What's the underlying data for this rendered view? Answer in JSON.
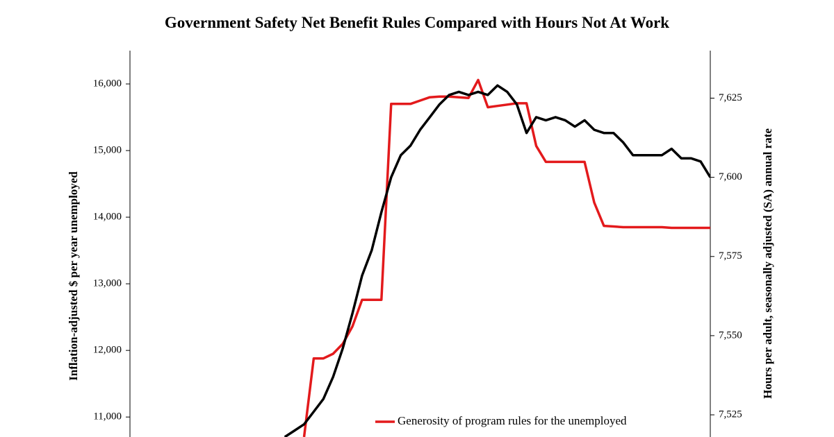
{
  "chart_data": {
    "type": "line",
    "title": "Government Safety Net Benefit Rules Compared with Hours Not At Work",
    "y_label": "Inflation-adjusted $ per year unemployed",
    "y2_label": "Hours per adult, seasonally adjusted (SA) annual rate",
    "categories": [
      null,
      null,
      null,
      null,
      null,
      null,
      null,
      null,
      null,
      null,
      null,
      null,
      null,
      null,
      null,
      null,
      null,
      null,
      null,
      null,
      null,
      null,
      null,
      null,
      null,
      null,
      null,
      null,
      null,
      null,
      null,
      null,
      null,
      null,
      null,
      null,
      null,
      null,
      null,
      null,
      null,
      null,
      null,
      null,
      null,
      null,
      null,
      null,
      null,
      null,
      null,
      null,
      null,
      null,
      null,
      null,
      null,
      null,
      null,
      null,
      null
    ],
    "ylim": [
      10700,
      16500
    ],
    "yticks": [
      {
        "value": 11000,
        "label": "11,000"
      },
      {
        "value": 12000,
        "label": "12,000"
      },
      {
        "value": 13000,
        "label": "13,000"
      },
      {
        "value": 14000,
        "label": "14,000"
      },
      {
        "value": 15000,
        "label": "15,000"
      },
      {
        "value": 16000,
        "label": "16,000"
      }
    ],
    "y2lim": [
      7518,
      7640
    ],
    "y2ticks": [
      {
        "value": 7525,
        "label": "7,525"
      },
      {
        "value": 7550,
        "label": "7,550"
      },
      {
        "value": 7575,
        "label": "7,575"
      },
      {
        "value": 7600,
        "label": "7,600"
      },
      {
        "value": 7625,
        "label": "7,625"
      }
    ],
    "series": [
      {
        "name": "Generosity of program rules for the unemployed",
        "color": "#e31a1c",
        "axis": "y",
        "values": [
          null,
          null,
          null,
          null,
          null,
          null,
          null,
          null,
          null,
          null,
          null,
          null,
          null,
          null,
          null,
          null,
          null,
          null,
          10700,
          11880,
          11880,
          11950,
          12100,
          12360,
          12760,
          12760,
          12760,
          15700,
          15700,
          15700,
          15750,
          15800,
          15810,
          15810,
          15800,
          15790,
          16060,
          15650,
          15670,
          15690,
          15710,
          15710,
          15070,
          14830,
          14830,
          14830,
          14830,
          14830,
          14220,
          13870,
          13860,
          13850,
          13850,
          13850,
          13850,
          13850,
          13840,
          13840,
          13840,
          13840,
          13840
        ]
      },
      {
        "color": "#000000",
        "axis": "y2",
        "values": [
          null,
          null,
          null,
          null,
          null,
          null,
          null,
          null,
          null,
          null,
          null,
          null,
          null,
          null,
          null,
          null,
          7518,
          7520,
          7522,
          7526,
          7530,
          7537,
          7546,
          7557,
          7569,
          7577,
          7589,
          7600,
          7607,
          7610,
          7615,
          7619,
          7623,
          7626,
          7627,
          7626,
          7627,
          7626,
          7629,
          7627,
          7623,
          7614,
          7619,
          7618,
          7619,
          7618,
          7616,
          7618,
          7615,
          7614,
          7614,
          7611,
          7607,
          7607,
          7607,
          7607,
          7609,
          7606,
          7606,
          7605,
          7600
        ]
      }
    ],
    "legend": "bottom"
  }
}
